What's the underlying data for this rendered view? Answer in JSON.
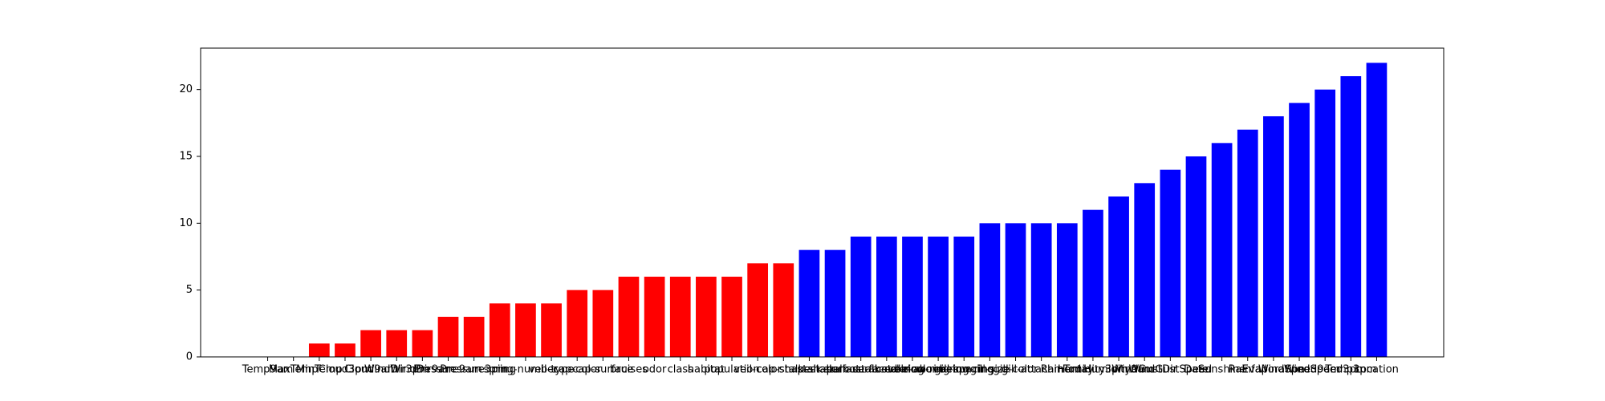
{
  "chart_data": {
    "type": "bar",
    "categories": [
      "Temp9am",
      "MaxTemp",
      "MinTemp",
      "Cloud3pm",
      "Cloud9am",
      "WindDir3pm",
      "WindDir9am",
      "Pressure9am",
      "Pressure3pm",
      "spring",
      "ring-number",
      "veil-type",
      "cap-color",
      "cap-surface",
      "bruises",
      "odor",
      "class",
      "habitat",
      "population",
      "veil-color",
      "cap-shape",
      "stalk-shape",
      "stalk-root",
      "stalk-surface-above-ring",
      "stalk-surface-below-ring",
      "stalk-color-above-ring",
      "stalk-color-below-ring",
      "gill-spacing",
      "gill-size",
      "gill-color",
      "gill-attachment",
      "RainToday",
      "Humidity3pm",
      "Humidity9am",
      "WindGustDir",
      "WindGustSpeed",
      "Date",
      "Sunshine",
      "Rainfall",
      "Evaporation",
      "WindSpeed9am",
      "WindSpeed3pm",
      "Temp3pm",
      "Location"
    ],
    "values": [
      0,
      0,
      1,
      1,
      2,
      2,
      2,
      3,
      3,
      4,
      4,
      4,
      5,
      5,
      6,
      6,
      6,
      6,
      6,
      7,
      7,
      8,
      8,
      9,
      9,
      9,
      9,
      9,
      10,
      10,
      10,
      10,
      11,
      12,
      13,
      14,
      15,
      16,
      17,
      18,
      19,
      20,
      21,
      22
    ],
    "colors": [
      "#ff0000",
      "#ff0000",
      "#ff0000",
      "#ff0000",
      "#ff0000",
      "#ff0000",
      "#ff0000",
      "#ff0000",
      "#ff0000",
      "#ff0000",
      "#ff0000",
      "#ff0000",
      "#ff0000",
      "#ff0000",
      "#ff0000",
      "#ff0000",
      "#ff0000",
      "#ff0000",
      "#ff0000",
      "#ff0000",
      "#ff0000",
      "#0000ff",
      "#0000ff",
      "#0000ff",
      "#0000ff",
      "#0000ff",
      "#0000ff",
      "#0000ff",
      "#0000ff",
      "#0000ff",
      "#0000ff",
      "#0000ff",
      "#0000ff",
      "#0000ff",
      "#0000ff",
      "#0000ff",
      "#0000ff",
      "#0000ff",
      "#0000ff",
      "#0000ff",
      "#0000ff",
      "#0000ff",
      "#0000ff",
      "#0000ff"
    ],
    "ylim": [
      0,
      23.1
    ],
    "yticks": [
      0,
      5,
      10,
      15,
      20
    ]
  }
}
